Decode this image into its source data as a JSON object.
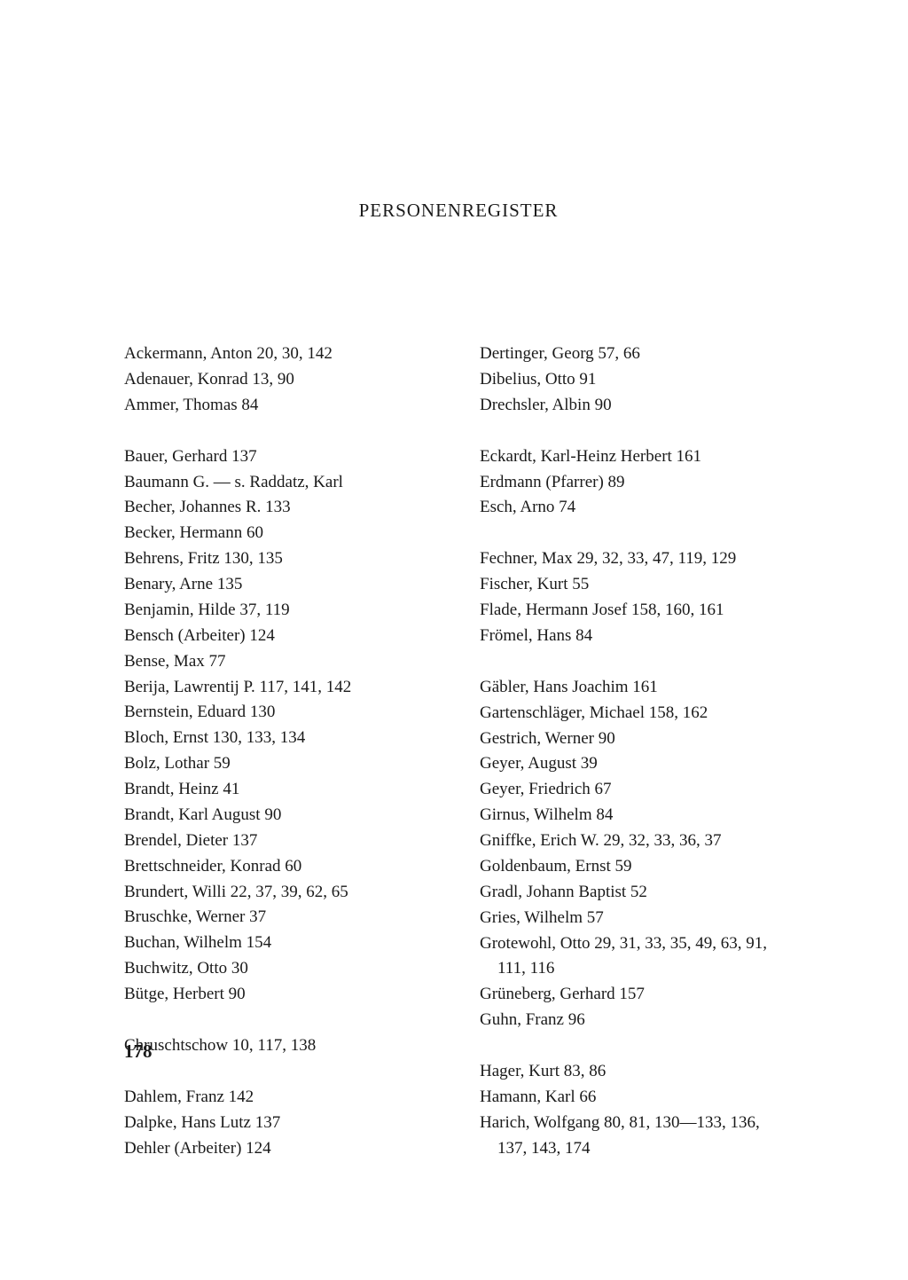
{
  "title": "PERSONENREGISTER",
  "pageNumber": "178",
  "leftColumn": [
    [
      "Ackermann, Anton 20, 30, 142",
      "Adenauer, Konrad 13, 90",
      "Ammer, Thomas 84"
    ],
    [
      "Bauer, Gerhard 137",
      "Baumann G. — s. Raddatz, Karl",
      "Becher, Johannes R. 133",
      "Becker, Hermann 60",
      "Behrens, Fritz 130, 135",
      "Benary, Arne 135",
      "Benjamin, Hilde 37, 119",
      "Bensch (Arbeiter) 124",
      "Bense, Max 77",
      "Berija, Lawrentij P. 117, 141, 142",
      "Bernstein, Eduard 130",
      "Bloch, Ernst 130, 133, 134",
      "Bolz, Lothar 59",
      "Brandt, Heinz 41",
      "Brandt, Karl August 90",
      "Brendel, Dieter 137",
      "Brettschneider, Konrad 60",
      "Brundert, Willi 22, 37, 39, 62, 65",
      "Bruschke, Werner 37",
      "Buchan, Wilhelm 154",
      "Buchwitz, Otto 30",
      "Bütge, Herbert 90"
    ],
    [
      "Chruschtschow 10, 117, 138"
    ],
    [
      "Dahlem, Franz 142",
      "Dalpke, Hans Lutz 137",
      "Dehler (Arbeiter) 124"
    ]
  ],
  "rightColumn": [
    [
      "Dertinger, Georg 57, 66",
      "Dibelius, Otto 91",
      "Drechsler, Albin 90"
    ],
    [
      "Eckardt, Karl-Heinz Herbert 161",
      "Erdmann (Pfarrer) 89",
      "Esch, Arno 74"
    ],
    [
      "Fechner, Max 29, 32, 33, 47, 119, 129",
      "Fischer, Kurt 55",
      "Flade, Hermann Josef 158, 160, 161",
      "Frömel, Hans 84"
    ],
    [
      "Gäbler, Hans Joachim 161",
      "Gartenschläger, Michael 158, 162",
      "Gestrich, Werner 90",
      "Geyer, August 39",
      "Geyer, Friedrich 67",
      "Girnus, Wilhelm 84",
      "Gniffke, Erich W. 29, 32, 33, 36, 37",
      "Goldenbaum, Ernst 59",
      "Gradl, Johann Baptist 52",
      "Gries, Wilhelm 57",
      "Grotewohl, Otto 29, 31, 33, 35, 49, 63, 91, 111, 116",
      "Grüneberg, Gerhard 157",
      "Guhn, Franz 96"
    ],
    [
      "Hager, Kurt 83, 86",
      "Hamann, Karl 66",
      "Harich, Wolfgang 80, 81, 130—133, 136, 137, 143, 174"
    ]
  ]
}
